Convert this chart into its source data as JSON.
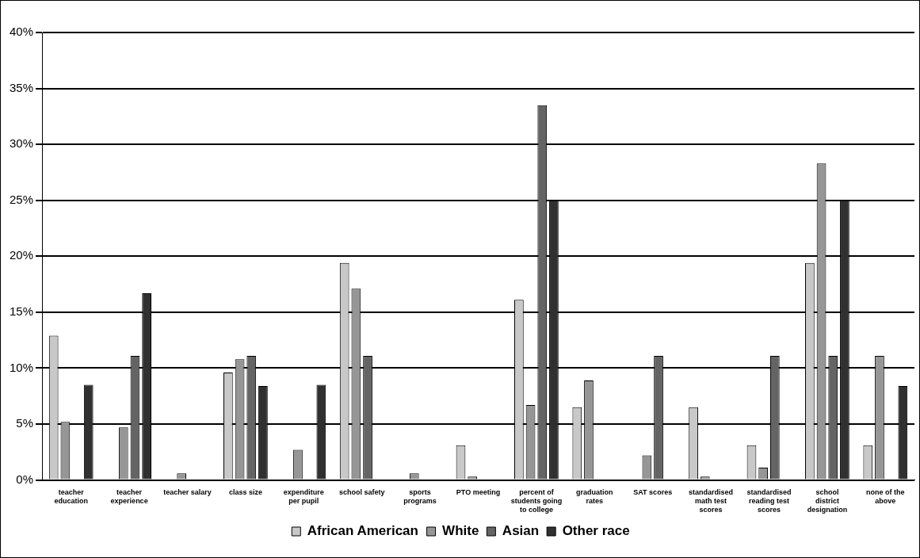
{
  "chart_data": {
    "type": "bar",
    "categories": [
      "teacher education",
      "teacher experience",
      "teacher salary",
      "class size",
      "expenditure per pupil",
      "school safety",
      "sports programs",
      "PTO meeting",
      "percent of students going to college",
      "graduation rates",
      "SAT scores",
      "standardised math test scores",
      "standardised reading test scores",
      "school district designation",
      "none of the above"
    ],
    "series": [
      {
        "name": "African American",
        "color": "#c8c8c8",
        "values": [
          12.9,
          null,
          null,
          9.6,
          null,
          19.4,
          null,
          3.1,
          16.1,
          6.5,
          null,
          6.5,
          3.1,
          19.4,
          3.1
        ]
      },
      {
        "name": "White",
        "color": "#969696",
        "values": [
          5.2,
          4.7,
          0.6,
          10.8,
          2.7,
          17.1,
          0.6,
          0.3,
          6.7,
          8.9,
          2.2,
          0.3,
          1.1,
          28.3,
          11.1
        ]
      },
      {
        "name": "Asian",
        "color": "#646464",
        "values": [
          null,
          11.1,
          null,
          11.1,
          null,
          11.1,
          null,
          null,
          33.5,
          null,
          11.1,
          null,
          11.1,
          11.1,
          null
        ]
      },
      {
        "name": "Other race",
        "color": "#303030",
        "values": [
          8.5,
          16.7,
          null,
          8.4,
          8.5,
          null,
          null,
          null,
          25.0,
          null,
          null,
          null,
          null,
          25.0,
          8.4
        ]
      }
    ],
    "ylim": [
      0,
      40
    ],
    "yticks": [
      {
        "value": 0,
        "label": "0%"
      },
      {
        "value": 5,
        "label": "5%"
      },
      {
        "value": 10,
        "label": "10%"
      },
      {
        "value": 15,
        "label": "15%"
      },
      {
        "value": 20,
        "label": "20%"
      },
      {
        "value": 25,
        "label": "25%"
      },
      {
        "value": 30,
        "label": "30%"
      },
      {
        "value": 35,
        "label": "35%"
      },
      {
        "value": 40,
        "label": "40%"
      }
    ],
    "grid": "y",
    "legend": "bottom"
  }
}
